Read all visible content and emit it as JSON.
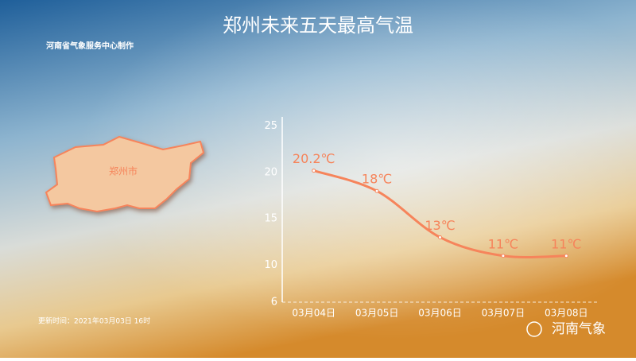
{
  "header": {
    "title": "郑州未来五天最高气温",
    "producer": "河南省气象服务中心制作"
  },
  "map": {
    "label": "郑州市"
  },
  "update_time": "更新时间：2021年03月03日 16时",
  "watermark": "河南气象",
  "chart_data": {
    "type": "line",
    "categories": [
      "03月04日",
      "03月05日",
      "03月06日",
      "03月07日",
      "03月08日"
    ],
    "values": [
      20.2,
      18,
      13,
      11,
      11
    ],
    "value_labels": [
      "20.2℃",
      "18℃",
      "13℃",
      "11℃",
      "11℃"
    ],
    "color": "#f6845b",
    "ylim": [
      6,
      26
    ],
    "yticks": [
      6,
      10,
      15,
      20,
      25
    ]
  }
}
